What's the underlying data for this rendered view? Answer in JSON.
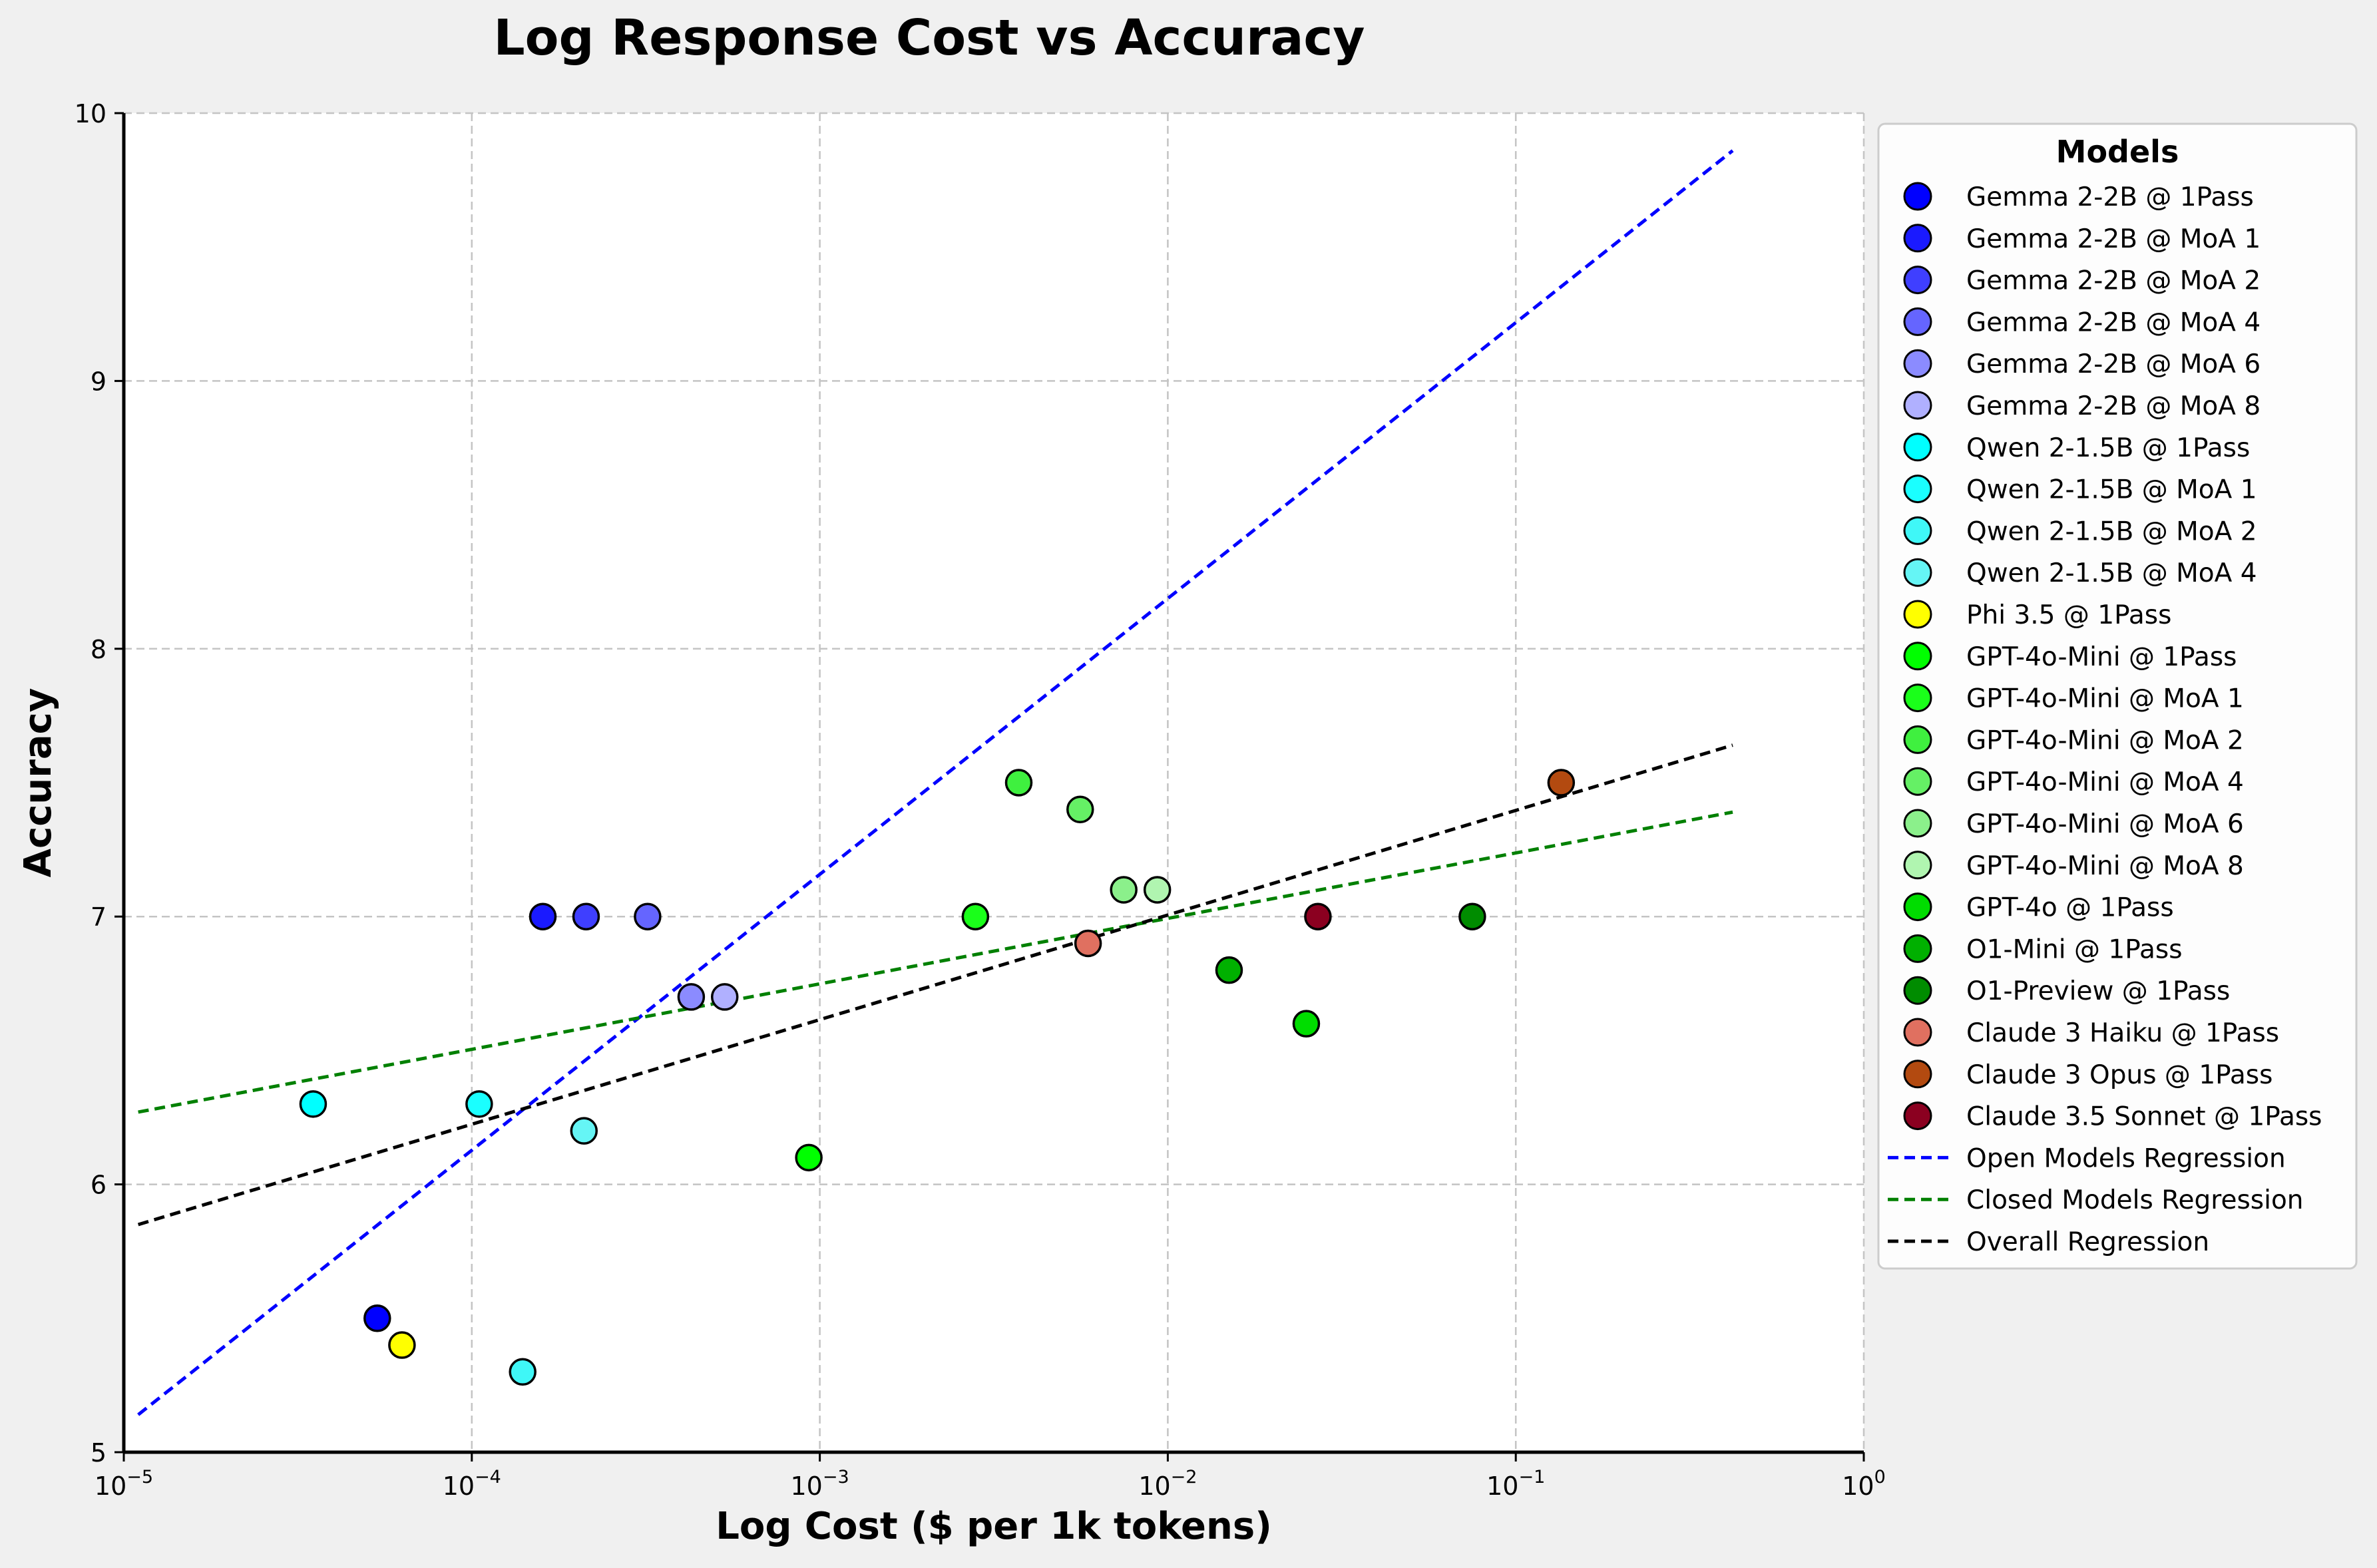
{
  "chart_data": {
    "type": "scatter",
    "title": "Log Response Cost vs Accuracy",
    "xlabel": "Log Cost ($ per 1k tokens)",
    "ylabel": "Accuracy",
    "xscale": "log",
    "xlim": [
      1e-05,
      1
    ],
    "ylim": [
      5,
      10
    ],
    "x_ticks": [
      {
        "value": 1e-05,
        "base": "10",
        "exp": "−5"
      },
      {
        "value": 0.0001,
        "base": "10",
        "exp": "−4"
      },
      {
        "value": 0.001,
        "base": "10",
        "exp": "−3"
      },
      {
        "value": 0.01,
        "base": "10",
        "exp": "−2"
      },
      {
        "value": 0.1,
        "base": "10",
        "exp": "−1"
      },
      {
        "value": 1,
        "base": "10",
        "exp": "0"
      }
    ],
    "y_ticks": [
      5,
      6,
      7,
      8,
      9,
      10
    ],
    "grid": true,
    "legend": {
      "title": "Models",
      "position": "outside-right"
    },
    "series": [
      {
        "name": "Gemma 2-2B @ 1Pass",
        "color": "#0000ff",
        "points": [
          {
            "x": 5.35e-05,
            "y": 5.5
          }
        ]
      },
      {
        "name": "Gemma 2-2B @ MoA 1",
        "color": "#1a1aff",
        "points": [
          {
            "x": 0.00016,
            "y": 7.0
          }
        ]
      },
      {
        "name": "Gemma 2-2B @ MoA 2",
        "color": "#3f3fff",
        "points": [
          {
            "x": 0.000213,
            "y": 7.0
          }
        ]
      },
      {
        "name": "Gemma 2-2B @ MoA 4",
        "color": "#6565ff",
        "points": [
          {
            "x": 0.00032,
            "y": 7.0
          }
        ]
      },
      {
        "name": "Gemma 2-2B @ MoA 6",
        "color": "#8b8bff",
        "points": [
          {
            "x": 0.000427,
            "y": 6.7
          }
        ]
      },
      {
        "name": "Gemma 2-2B @ MoA 8",
        "color": "#b0b0ff",
        "points": [
          {
            "x": 0.000533,
            "y": 6.7
          }
        ]
      },
      {
        "name": "Qwen 2-1.5B @ 1Pass",
        "color": "#00ffff",
        "points": [
          {
            "x": 3.5e-05,
            "y": 6.3
          }
        ]
      },
      {
        "name": "Qwen 2-1.5B @ MoA 1",
        "color": "#1affff",
        "points": [
          {
            "x": 0.000105,
            "y": 6.3
          }
        ]
      },
      {
        "name": "Qwen 2-1.5B @ MoA 2",
        "color": "#3ff7f7",
        "points": [
          {
            "x": 0.00014,
            "y": 5.3
          }
        ]
      },
      {
        "name": "Qwen 2-1.5B @ MoA 4",
        "color": "#65f5f5",
        "points": [
          {
            "x": 0.00021,
            "y": 6.2
          }
        ]
      },
      {
        "name": "Phi 3.5 @ 1Pass",
        "color": "#ffff00",
        "points": [
          {
            "x": 6.3e-05,
            "y": 5.4
          }
        ]
      },
      {
        "name": "GPT-4o-Mini @ 1Pass",
        "color": "#00ff00",
        "points": [
          {
            "x": 0.00093,
            "y": 6.1
          }
        ]
      },
      {
        "name": "GPT-4o-Mini @ MoA 1",
        "color": "#1aff1a",
        "points": [
          {
            "x": 0.0028,
            "y": 7.0
          }
        ]
      },
      {
        "name": "GPT-4o-Mini @ MoA 2",
        "color": "#3ff03f",
        "points": [
          {
            "x": 0.00373,
            "y": 7.5
          }
        ]
      },
      {
        "name": "GPT-4o-Mini @ MoA 4",
        "color": "#65f065",
        "points": [
          {
            "x": 0.0056,
            "y": 7.4
          }
        ]
      },
      {
        "name": "GPT-4o-Mini @ MoA 6",
        "color": "#8bf08b",
        "points": [
          {
            "x": 0.00747,
            "y": 7.1
          }
        ]
      },
      {
        "name": "GPT-4o-Mini @ MoA 8",
        "color": "#b0f5b0",
        "points": [
          {
            "x": 0.00933,
            "y": 7.1
          }
        ]
      },
      {
        "name": "GPT-4o @ 1Pass",
        "color": "#00dd00",
        "points": [
          {
            "x": 0.025,
            "y": 6.6
          }
        ]
      },
      {
        "name": "O1-Mini @ 1Pass",
        "color": "#00b000",
        "points": [
          {
            "x": 0.015,
            "y": 6.8
          }
        ]
      },
      {
        "name": "O1-Preview @ 1Pass",
        "color": "#008c00",
        "points": [
          {
            "x": 0.075,
            "y": 7.0
          }
        ]
      },
      {
        "name": "Claude 3 Haiku @ 1Pass",
        "color": "#e07060",
        "points": [
          {
            "x": 0.0059,
            "y": 6.9
          }
        ]
      },
      {
        "name": "Claude 3 Opus @ 1Pass",
        "color": "#b34a10",
        "points": [
          {
            "x": 0.135,
            "y": 7.5
          }
        ]
      },
      {
        "name": "Claude 3.5 Sonnet @ 1Pass",
        "color": "#8b0020",
        "points": [
          {
            "x": 0.027,
            "y": 7.0
          }
        ]
      }
    ],
    "regressions": [
      {
        "name": "Open Models Regression",
        "color": "#0000ff",
        "x": [
          1.1e-05,
          0.42
        ],
        "y": [
          5.14,
          9.86
        ]
      },
      {
        "name": "Closed Models Regression",
        "color": "#008000",
        "x": [
          1.1e-05,
          0.42
        ],
        "y": [
          6.27,
          7.39
        ]
      },
      {
        "name": "Overall Regression",
        "color": "#000000",
        "x": [
          1.1e-05,
          0.42
        ],
        "y": [
          5.85,
          7.64
        ]
      }
    ]
  }
}
